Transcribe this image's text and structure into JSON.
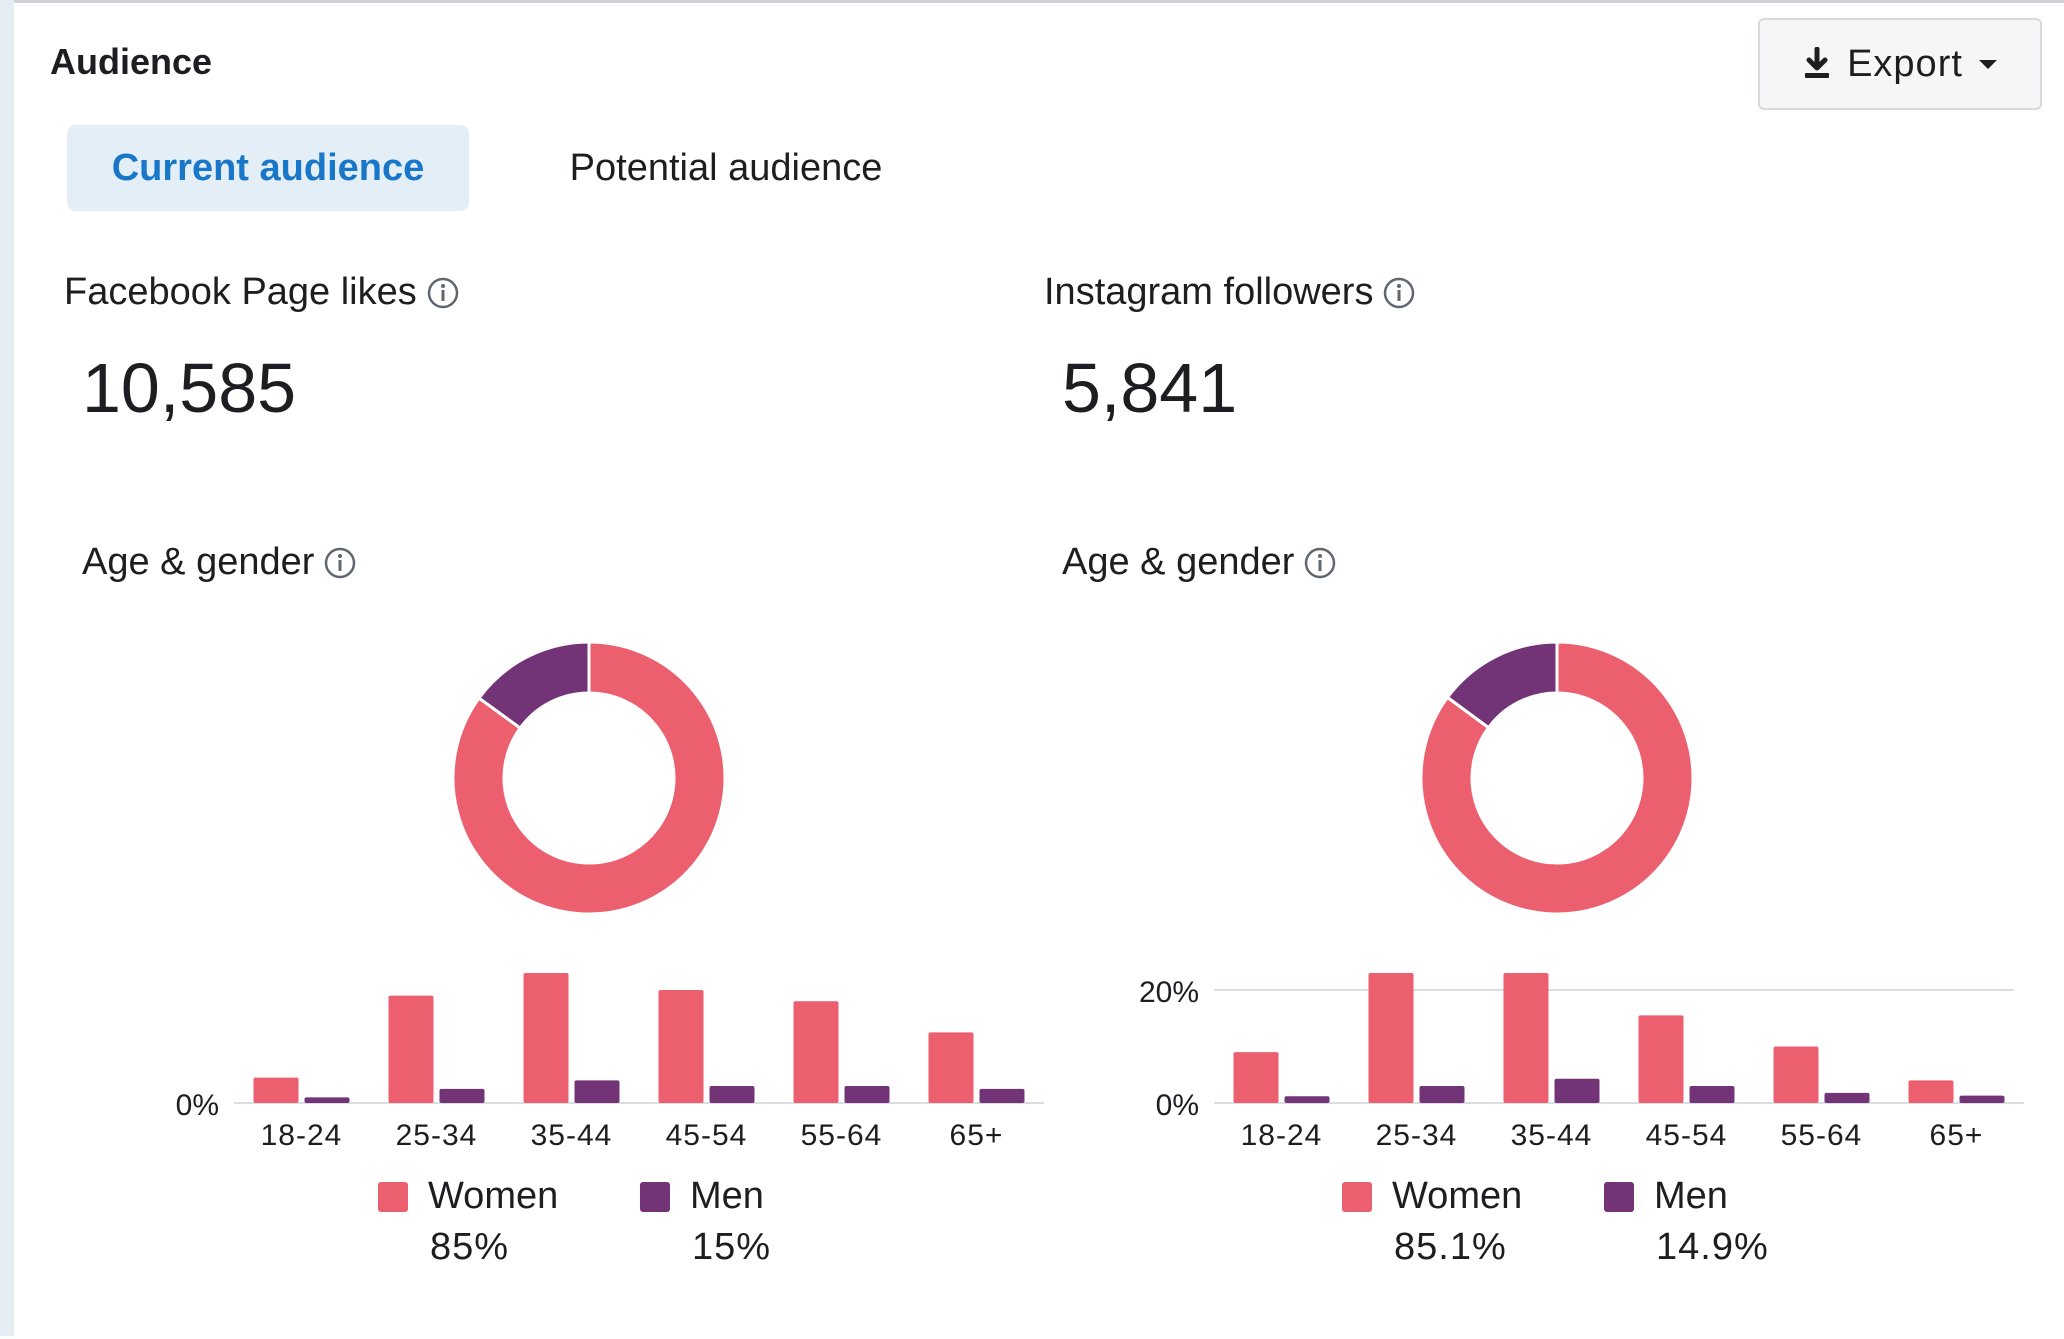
{
  "header": {
    "title": "Audience",
    "export_label": "Export"
  },
  "tabs": [
    {
      "label": "Current audience",
      "active": true
    },
    {
      "label": "Potential audience",
      "active": false
    }
  ],
  "colors": {
    "women": "#ec5f6e",
    "men": "#733477",
    "accent": "#1877c8",
    "grid": "#dadde1"
  },
  "facebook": {
    "label": "Facebook Page likes",
    "value": "10,585",
    "section_label": "Age & gender",
    "legend": [
      {
        "name": "Women",
        "pct": "85%"
      },
      {
        "name": "Men",
        "pct": "15%"
      }
    ]
  },
  "instagram": {
    "label": "Instagram followers",
    "value": "5,841",
    "section_label": "Age & gender",
    "legend": [
      {
        "name": "Women",
        "pct": "85.1%"
      },
      {
        "name": "Men",
        "pct": "14.9%"
      }
    ]
  },
  "chart_data": [
    {
      "type": "pie",
      "id": "fb-donut",
      "series": [
        {
          "name": "Women",
          "value": 85
        },
        {
          "name": "Men",
          "value": 15
        }
      ]
    },
    {
      "type": "bar",
      "id": "fb-bars",
      "categories": [
        "18-24",
        "25-34",
        "35-44",
        "45-54",
        "55-64",
        "65+"
      ],
      "series": [
        {
          "name": "Women",
          "values": [
            4.5,
            19,
            23,
            20,
            18,
            12.5
          ]
        },
        {
          "name": "Men",
          "values": [
            1,
            2.5,
            4,
            3,
            3,
            2.5
          ]
        }
      ],
      "ylim": [
        0,
        23
      ],
      "yticks": [
        "0%"
      ],
      "grid": false
    },
    {
      "type": "pie",
      "id": "ig-donut",
      "series": [
        {
          "name": "Women",
          "value": 85.1
        },
        {
          "name": "Men",
          "value": 14.9
        }
      ]
    },
    {
      "type": "bar",
      "id": "ig-bars",
      "categories": [
        "18-24",
        "25-34",
        "35-44",
        "45-54",
        "55-64",
        "65+"
      ],
      "series": [
        {
          "name": "Women",
          "values": [
            9,
            23,
            23,
            15.5,
            10,
            4
          ]
        },
        {
          "name": "Men",
          "values": [
            1.2,
            3,
            4.3,
            3,
            1.8,
            1.3
          ]
        }
      ],
      "ylim": [
        0,
        23
      ],
      "yticks": [
        "0%",
        "20%"
      ],
      "yticks_values": [
        0,
        20
      ],
      "grid": true
    }
  ]
}
